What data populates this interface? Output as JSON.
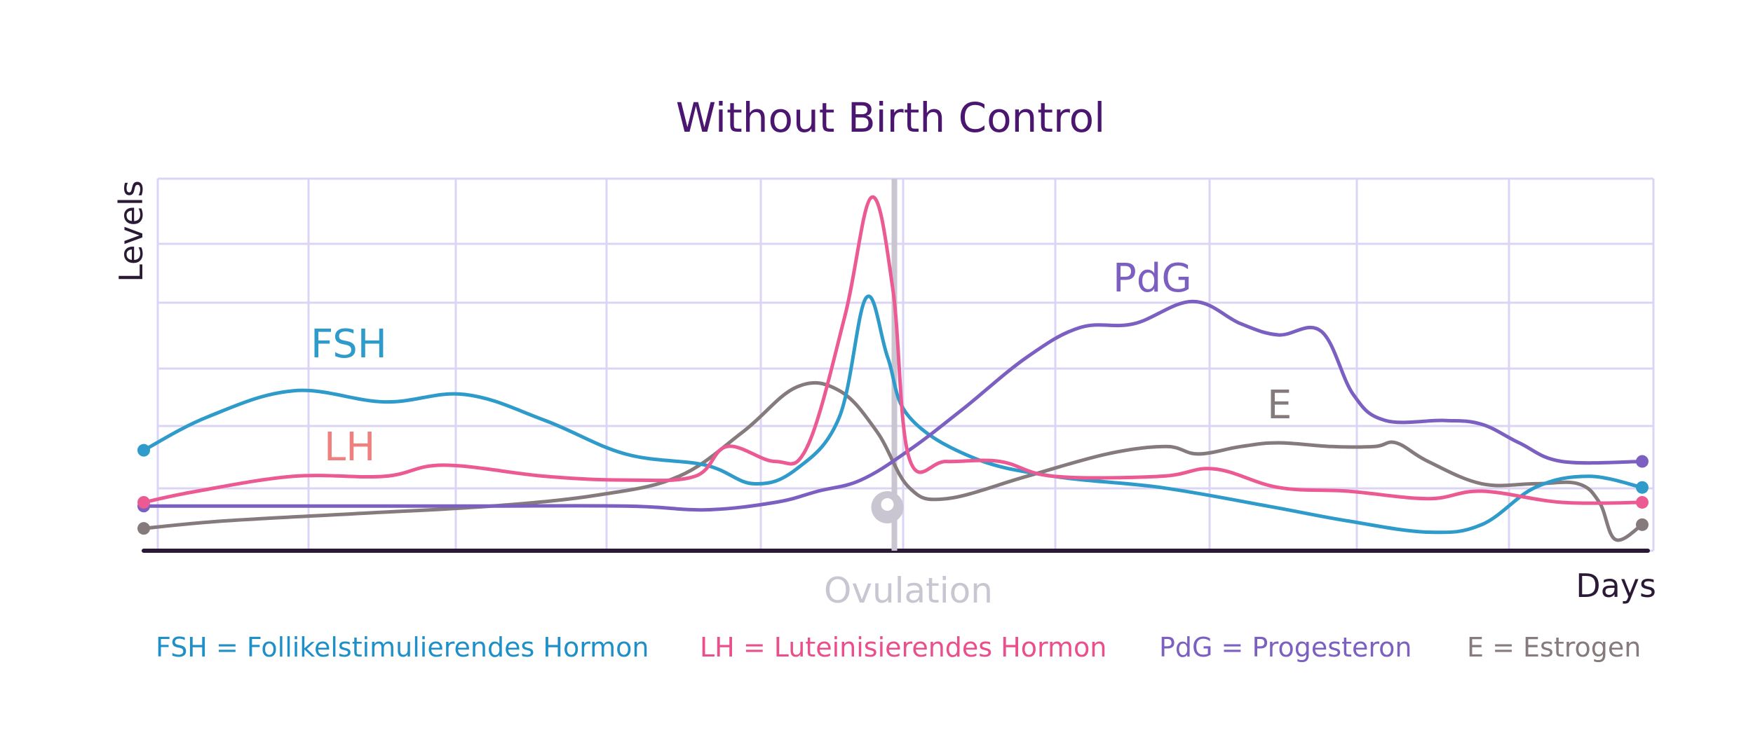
{
  "chart_data": {
    "type": "line",
    "title": "Without Birth Control",
    "xlabel": "Days",
    "ylabel": "Levels",
    "xlim": [
      0,
      28
    ],
    "ylim": [
      0,
      10
    ],
    "grid": true,
    "x_ticks_labeled": false,
    "y_ticks_labeled": false,
    "annotation": {
      "text": "Ovulation",
      "x": 14
    },
    "series": [
      {
        "key": "fsh",
        "name": "FSH",
        "color": "#2f9bcb",
        "points": [
          [
            0,
            2.7
          ],
          [
            1.2,
            3.6
          ],
          [
            2.8,
            4.3
          ],
          [
            4.5,
            4.0
          ],
          [
            6.0,
            4.2
          ],
          [
            7.5,
            3.5
          ],
          [
            9.0,
            2.6
          ],
          [
            10.5,
            2.3
          ],
          [
            11.4,
            1.8
          ],
          [
            12.2,
            2.2
          ],
          [
            13.0,
            3.6
          ],
          [
            13.5,
            6.8
          ],
          [
            13.9,
            5.2
          ],
          [
            14.3,
            3.6
          ],
          [
            15.5,
            2.5
          ],
          [
            17.0,
            2.0
          ],
          [
            19.0,
            1.7
          ],
          [
            21.0,
            1.2
          ],
          [
            22.5,
            0.8
          ],
          [
            24.0,
            0.5
          ],
          [
            25.0,
            0.7
          ],
          [
            26.0,
            1.7
          ],
          [
            27.0,
            2.0
          ],
          [
            28.0,
            1.7
          ]
        ]
      },
      {
        "key": "lh",
        "name": "LH",
        "color": "#ec5a93",
        "points": [
          [
            0,
            1.3
          ],
          [
            1.0,
            1.6
          ],
          [
            2.8,
            2.0
          ],
          [
            4.5,
            2.0
          ],
          [
            5.6,
            2.3
          ],
          [
            7.5,
            2.0
          ],
          [
            9.0,
            1.9
          ],
          [
            10.3,
            2.0
          ],
          [
            10.9,
            2.8
          ],
          [
            11.8,
            2.4
          ],
          [
            12.4,
            2.8
          ],
          [
            13.1,
            6.3
          ],
          [
            13.6,
            9.5
          ],
          [
            14.0,
            7.0
          ],
          [
            14.3,
            2.5
          ],
          [
            15.0,
            2.4
          ],
          [
            16.0,
            2.4
          ],
          [
            17.0,
            2.0
          ],
          [
            19.0,
            2.0
          ],
          [
            20.0,
            2.2
          ],
          [
            21.2,
            1.7
          ],
          [
            22.5,
            1.6
          ],
          [
            24.0,
            1.4
          ],
          [
            25.0,
            1.6
          ],
          [
            26.5,
            1.3
          ],
          [
            28.0,
            1.3
          ]
        ]
      },
      {
        "key": "pdg",
        "name": "PdG",
        "color": "#7b5fc1",
        "points": [
          [
            0,
            1.2
          ],
          [
            3.0,
            1.2
          ],
          [
            6.0,
            1.2
          ],
          [
            9.0,
            1.2
          ],
          [
            10.5,
            1.1
          ],
          [
            11.8,
            1.3
          ],
          [
            12.6,
            1.6
          ],
          [
            13.4,
            1.9
          ],
          [
            14.3,
            2.7
          ],
          [
            15.3,
            3.8
          ],
          [
            16.5,
            5.2
          ],
          [
            17.5,
            6.0
          ],
          [
            18.5,
            6.1
          ],
          [
            19.6,
            6.7
          ],
          [
            20.5,
            6.1
          ],
          [
            21.2,
            5.8
          ],
          [
            22.0,
            5.9
          ],
          [
            22.6,
            4.2
          ],
          [
            23.2,
            3.5
          ],
          [
            24.3,
            3.5
          ],
          [
            25.0,
            3.4
          ],
          [
            25.7,
            2.9
          ],
          [
            26.5,
            2.4
          ],
          [
            28.0,
            2.4
          ]
        ]
      },
      {
        "key": "e",
        "name": "E",
        "color": "#857a7c",
        "points": [
          [
            0,
            0.6
          ],
          [
            1.5,
            0.8
          ],
          [
            4.0,
            1.0
          ],
          [
            6.5,
            1.2
          ],
          [
            8.5,
            1.5
          ],
          [
            10.0,
            2.0
          ],
          [
            11.2,
            3.2
          ],
          [
            12.2,
            4.4
          ],
          [
            13.0,
            4.3
          ],
          [
            13.7,
            3.2
          ],
          [
            14.3,
            1.7
          ],
          [
            15.0,
            1.4
          ],
          [
            16.5,
            2.0
          ],
          [
            18.0,
            2.6
          ],
          [
            19.1,
            2.8
          ],
          [
            19.7,
            2.6
          ],
          [
            20.5,
            2.8
          ],
          [
            21.2,
            2.9
          ],
          [
            22.2,
            2.8
          ],
          [
            23.0,
            2.8
          ],
          [
            23.4,
            2.9
          ],
          [
            24.0,
            2.4
          ],
          [
            25.0,
            1.8
          ],
          [
            26.0,
            1.8
          ],
          [
            26.8,
            1.8
          ],
          [
            27.2,
            1.3
          ],
          [
            27.5,
            0.3
          ],
          [
            28.0,
            0.7
          ]
        ]
      }
    ],
    "labels": {
      "fsh": "FSH",
      "lh": "LH",
      "pdg": "PdG",
      "e": "E"
    },
    "legend": [
      {
        "key": "fsh",
        "text": "FSH = Follikelstimulierendes Hormon",
        "color": "#1f8fc8"
      },
      {
        "key": "lh",
        "text": "LH = Luteinisierendes Hormon",
        "color": "#ea4f8c"
      },
      {
        "key": "pdg",
        "text": "PdG = Progesteron",
        "color": "#7b5fc1"
      },
      {
        "key": "e",
        "text": "E = Estrogen",
        "color": "#857a7c"
      }
    ],
    "colors": {
      "title": "#4b1670",
      "axis_text": "#2a1a36",
      "grid": "#dcd4f4",
      "baseline": "#2a1a36",
      "ovulation": "#c9c6d2",
      "fsh_label": "#2f9bcb",
      "lh_label": "#f08080",
      "pdg_label": "#7b5fc1",
      "e_label": "#857a7c"
    }
  }
}
